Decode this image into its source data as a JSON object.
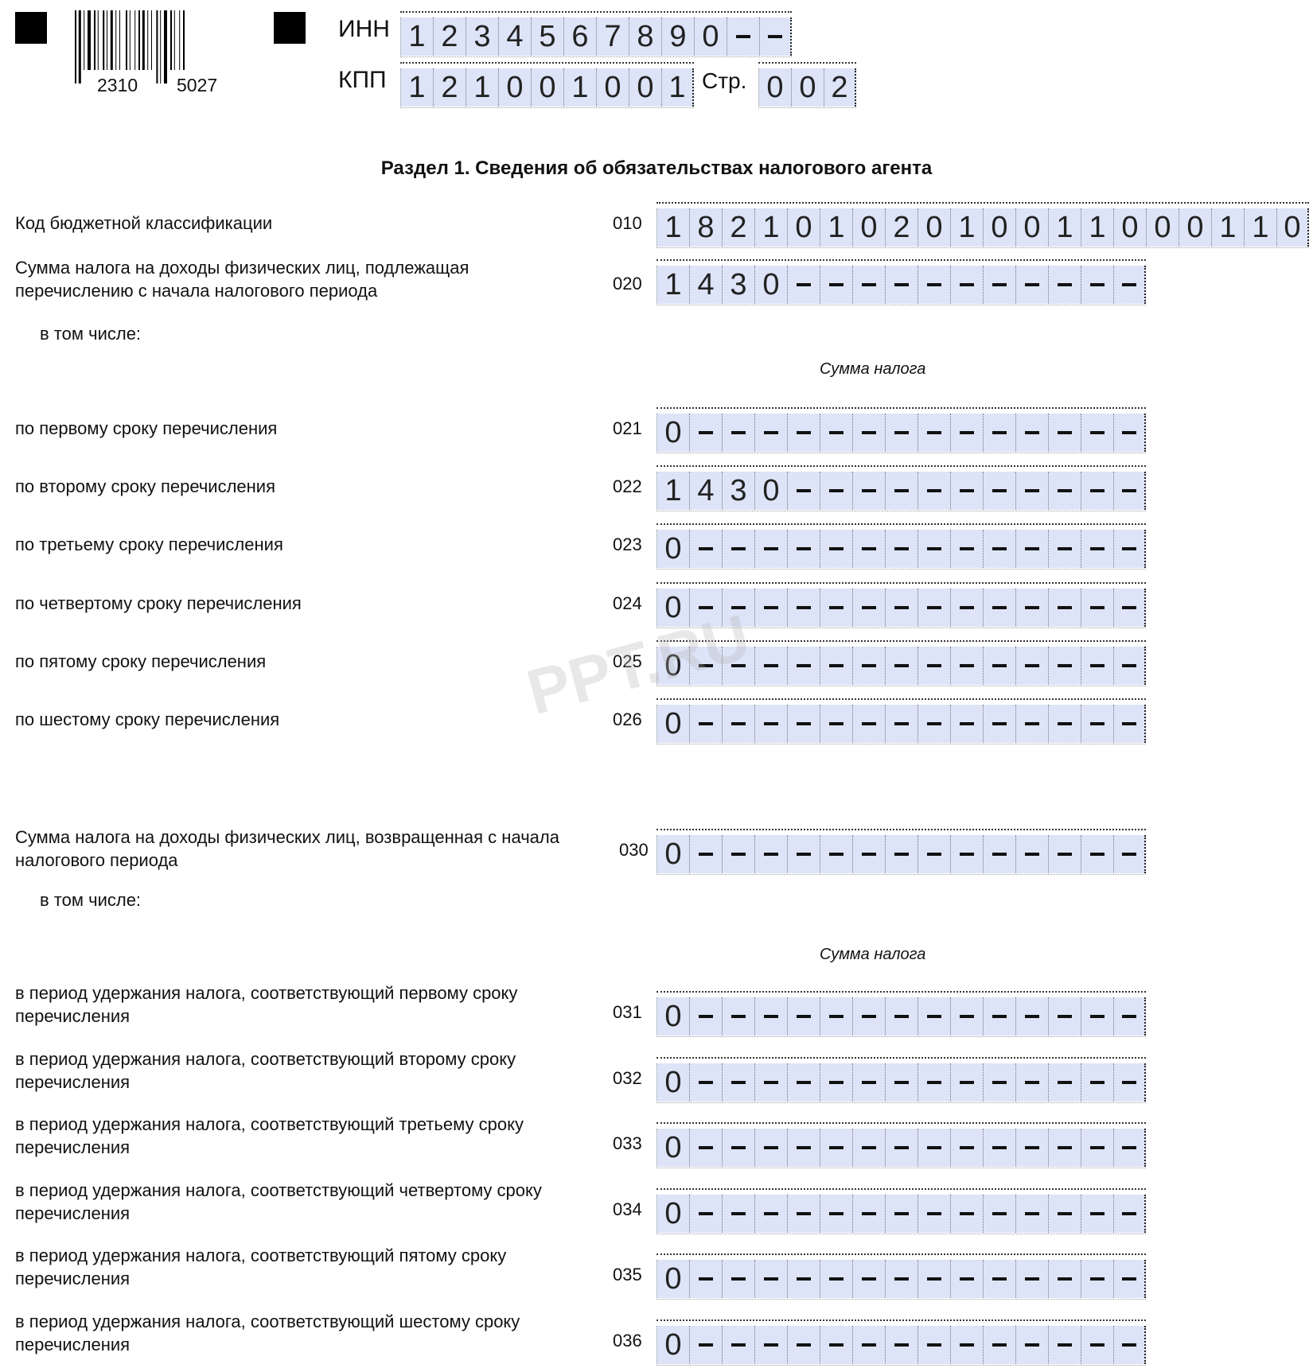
{
  "header": {
    "barcode_numbers": [
      "2310",
      "5027"
    ],
    "inn_label": "ИНН",
    "inn_cells": "1234567890--",
    "kpp_label": "КПП",
    "kpp_cells": "121001001",
    "page_label": "Стр.",
    "page_cells": "002"
  },
  "title": "Раздел 1. Сведения об обязательствах налогового агента",
  "watermark": "PPT.RU",
  "tax_sum_header": "Сумма налога",
  "in_that_number": "в том числе:",
  "rows": [
    {
      "label": "Код бюджетной классификации",
      "code": "010",
      "cells": "18210102010011000110"
    },
    {
      "label": "Сумма налога на доходы физических лиц, подлежащая перечислению с начала налогового периода",
      "code": "020",
      "cells": "1430-----------"
    },
    {
      "label": "по первому сроку перечисления",
      "code": "021",
      "cells": "0--------------"
    },
    {
      "label": "по второму сроку перечисления",
      "code": "022",
      "cells": "1430-----------"
    },
    {
      "label": "по третьему сроку перечисления",
      "code": "023",
      "cells": "0--------------"
    },
    {
      "label": "по четвертому сроку перечисления",
      "code": "024",
      "cells": "0--------------"
    },
    {
      "label": "по пятому сроку перечисления",
      "code": "025",
      "cells": "0--------------"
    },
    {
      "label": "по шестому сроку перечисления",
      "code": "026",
      "cells": "0--------------"
    },
    {
      "label": "Сумма налога на доходы физических лиц, возвращенная с начала налогового периода",
      "code": "030",
      "cells": "0--------------"
    },
    {
      "label": "в период удержания налога, соответствующий первому сроку перечисления",
      "code": "031",
      "cells": "0--------------"
    },
    {
      "label": "в период удержания налога, соответствующий второму сроку перечисления",
      "code": "032",
      "cells": "0--------------"
    },
    {
      "label": "в период удержания налога, соответствующий третьему сроку перечисления",
      "code": "033",
      "cells": "0--------------"
    },
    {
      "label": "в период удержания налога, соответствующий четвертому сроку перечисления",
      "code": "034",
      "cells": "0--------------"
    },
    {
      "label": "в период удержания налога, соответствующий пятому сроку перечисления",
      "code": "035",
      "cells": "0--------------"
    },
    {
      "label": "в период удержания налога, соответствующий шестому сроку перечисления",
      "code": "036",
      "cells": "0--------------"
    }
  ],
  "colors": {
    "cell_bg": "#dde4f8"
  }
}
